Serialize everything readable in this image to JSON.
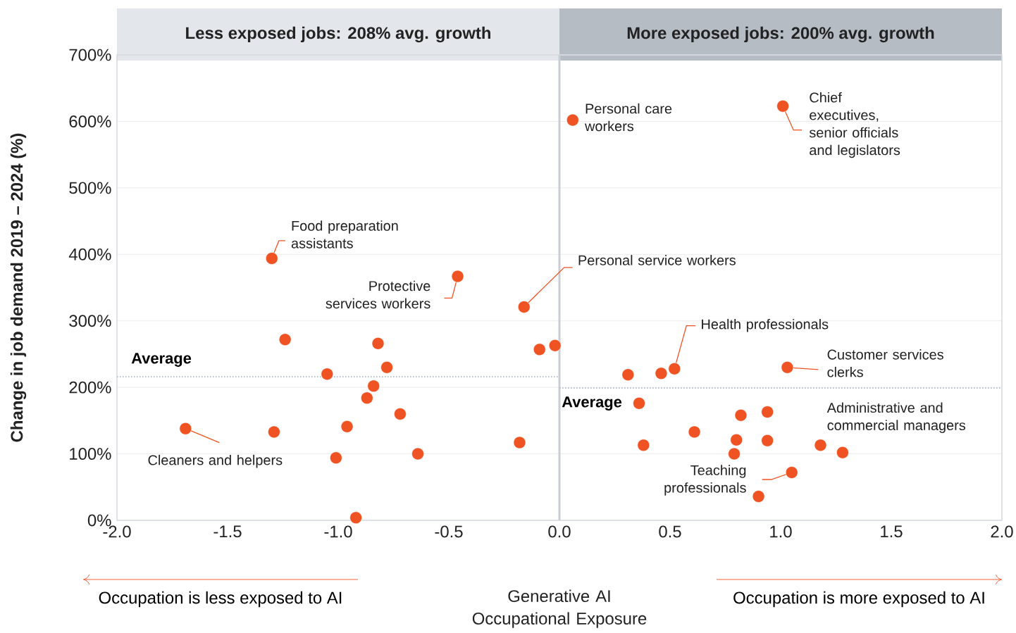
{
  "chart_data": {
    "type": "scatter",
    "xlabel": "Generative AI Occupational Exposure",
    "ylabel": "Change in job demand 2019 – 2024 (%)",
    "xlim": [
      -2,
      2
    ],
    "ylim": [
      0,
      700
    ],
    "xticks": [
      {
        "value": -2,
        "label": "-2.0"
      },
      {
        "value": -1.5,
        "label": "-1.5"
      },
      {
        "value": -1,
        "label": "-1.0"
      },
      {
        "value": -0.5,
        "label": "-0.5"
      },
      {
        "value": 0,
        "label": "0.0"
      },
      {
        "value": 0.5,
        "label": "0.5"
      },
      {
        "value": 1,
        "label": "1.0"
      },
      {
        "value": 1.5,
        "label": "1.5"
      },
      {
        "value": 2,
        "label": "2.0"
      }
    ],
    "yticks": [
      {
        "value": 0,
        "label": "0%"
      },
      {
        "value": 100,
        "label": "100%"
      },
      {
        "value": 200,
        "label": "200%"
      },
      {
        "value": 300,
        "label": "300%"
      },
      {
        "value": 400,
        "label": "400%"
      },
      {
        "value": 500,
        "label": "500%"
      },
      {
        "value": 600,
        "label": "600%"
      },
      {
        "value": 700,
        "label": "700%"
      }
    ],
    "grid": "y",
    "ref_lines": [
      {
        "axis": "x",
        "value": 0,
        "color": "#c9ced4"
      }
    ],
    "series": [
      {
        "type": "scatter",
        "marker": "circle",
        "color": "#ef5323",
        "x": [
          -1.69,
          -1.3,
          -1.24,
          -1.29,
          -1.05,
          -1.01,
          -0.96,
          -0.92,
          -0.87,
          -0.84,
          -0.82,
          -0.78,
          -0.72,
          -0.64,
          -0.46,
          -0.16,
          -0.18,
          -0.09,
          -0.02,
          0.06,
          1.01,
          0.31,
          0.46,
          0.52,
          1.03,
          0.36,
          0.38,
          0.61,
          0.82,
          0.94,
          0.8,
          0.94,
          0.79,
          1.18,
          1.28,
          1.05,
          0.9
        ],
        "values": [
          138,
          394,
          272,
          133,
          220,
          94,
          141,
          4,
          184,
          202,
          266,
          230,
          160,
          100,
          367,
          321,
          117,
          257,
          263,
          602,
          623,
          219,
          221,
          228,
          230,
          176,
          113,
          133,
          158,
          163,
          121,
          120,
          100,
          113,
          102,
          72,
          36
        ]
      },
      {
        "type": "line",
        "marker": "none",
        "name": "Average",
        "color": "#b4bcc6",
        "line_style": "dotted",
        "x": [
          -2,
          0
        ],
        "values": [
          216,
          216
        ]
      },
      {
        "type": "line",
        "marker": "none",
        "name": "Average",
        "color": "#b4bcc6",
        "line_style": "dotted",
        "x": [
          0,
          2
        ],
        "values": [
          199,
          199
        ]
      }
    ],
    "annotations": [
      "Less exposed jobs: 208% avg. growth",
      "More exposed jobs: 200% avg. growth",
      "Occupation is less exposed to AI",
      "Occupation is more exposed to AI",
      {
        "text": "Personal care workers",
        "x": 0.06,
        "y": 602
      },
      {
        "text": "Chief executives, senior officials and legislators",
        "x": 1.01,
        "y": 623
      },
      {
        "text": "Food preparation assistants",
        "x": -1.3,
        "y": 394
      },
      {
        "text": "Protective services workers",
        "x": -0.46,
        "y": 367
      },
      {
        "text": "Personal service workers",
        "x": -0.16,
        "y": 321
      },
      {
        "text": "Health professionals",
        "x": 0.52,
        "y": 228
      },
      {
        "text": "Customer services clerks",
        "x": 1.03,
        "y": 230
      },
      {
        "text": "Administrative and commercial managers",
        "x": 1.18,
        "y": 113
      },
      {
        "text": "Teaching professionals",
        "x": 1.05,
        "y": 72
      },
      {
        "text": "Cleaners and helpers",
        "x": -1.69,
        "y": 138
      }
    ]
  }
}
